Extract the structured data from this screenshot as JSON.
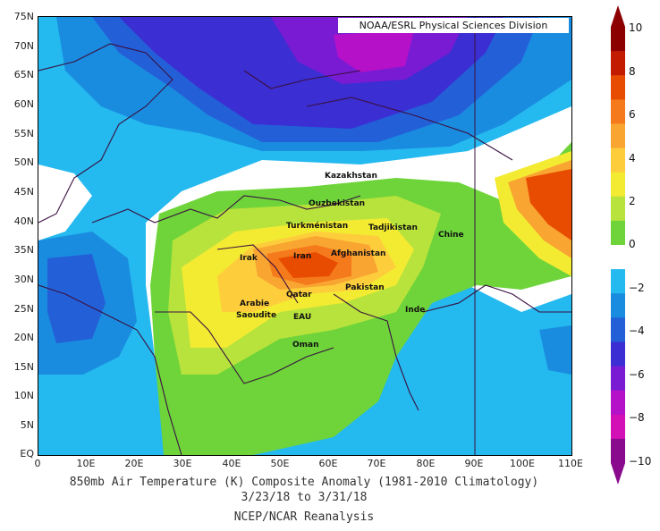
{
  "credit": "NOAA/ESRL Physical Sciences Division",
  "caption": {
    "title": "850mb Air Temperature (K) Composite Anomaly (1981-2010 Climatology)",
    "dates": "3/23/18   to 3/31/18",
    "source": "NCEP/NCAR Reanalysis"
  },
  "lat_labels": [
    "75N",
    "70N",
    "65N",
    "60N",
    "55N",
    "50N",
    "45N",
    "40N",
    "35N",
    "30N",
    "25N",
    "20N",
    "15N",
    "10N",
    "5N",
    "EQ"
  ],
  "lon_labels": [
    "0",
    "10E",
    "20E",
    "30E",
    "40E",
    "50E",
    "60E",
    "70E",
    "80E",
    "90E",
    "100E",
    "110E"
  ],
  "colorbar": {
    "labels": [
      "10",
      "8",
      "6",
      "4",
      "2",
      "0",
      "−2",
      "−4",
      "−6",
      "−8",
      "−10"
    ],
    "colors": [
      "#8c0000",
      "#c31b00",
      "#e84c00",
      "#f57a1c",
      "#f9a531",
      "#fdcd3c",
      "#f3eb32",
      "#b8e33c",
      "#6ed43a",
      "#ffffff",
      "#24b9ef",
      "#1a8ce0",
      "#2360d8",
      "#3b2ed3",
      "#7a1bd4",
      "#b411c9",
      "#d30fb6",
      "#8a0a8e"
    ]
  },
  "countries": [
    {
      "name": "Kazakhstan"
    },
    {
      "name": "Ouzbekistan"
    },
    {
      "name": "Turkménistan"
    },
    {
      "name": "Tadjikistan"
    },
    {
      "name": "Chine"
    },
    {
      "name": "Irak"
    },
    {
      "name": "Iran"
    },
    {
      "name": "Afghanistan"
    },
    {
      "name": "Pakistan"
    },
    {
      "name": "Qatar"
    },
    {
      "name": "Arabie"
    },
    {
      "name": "Saoudite"
    },
    {
      "name": "EAU"
    },
    {
      "name": "Oman"
    },
    {
      "name": "Inde"
    }
  ]
}
